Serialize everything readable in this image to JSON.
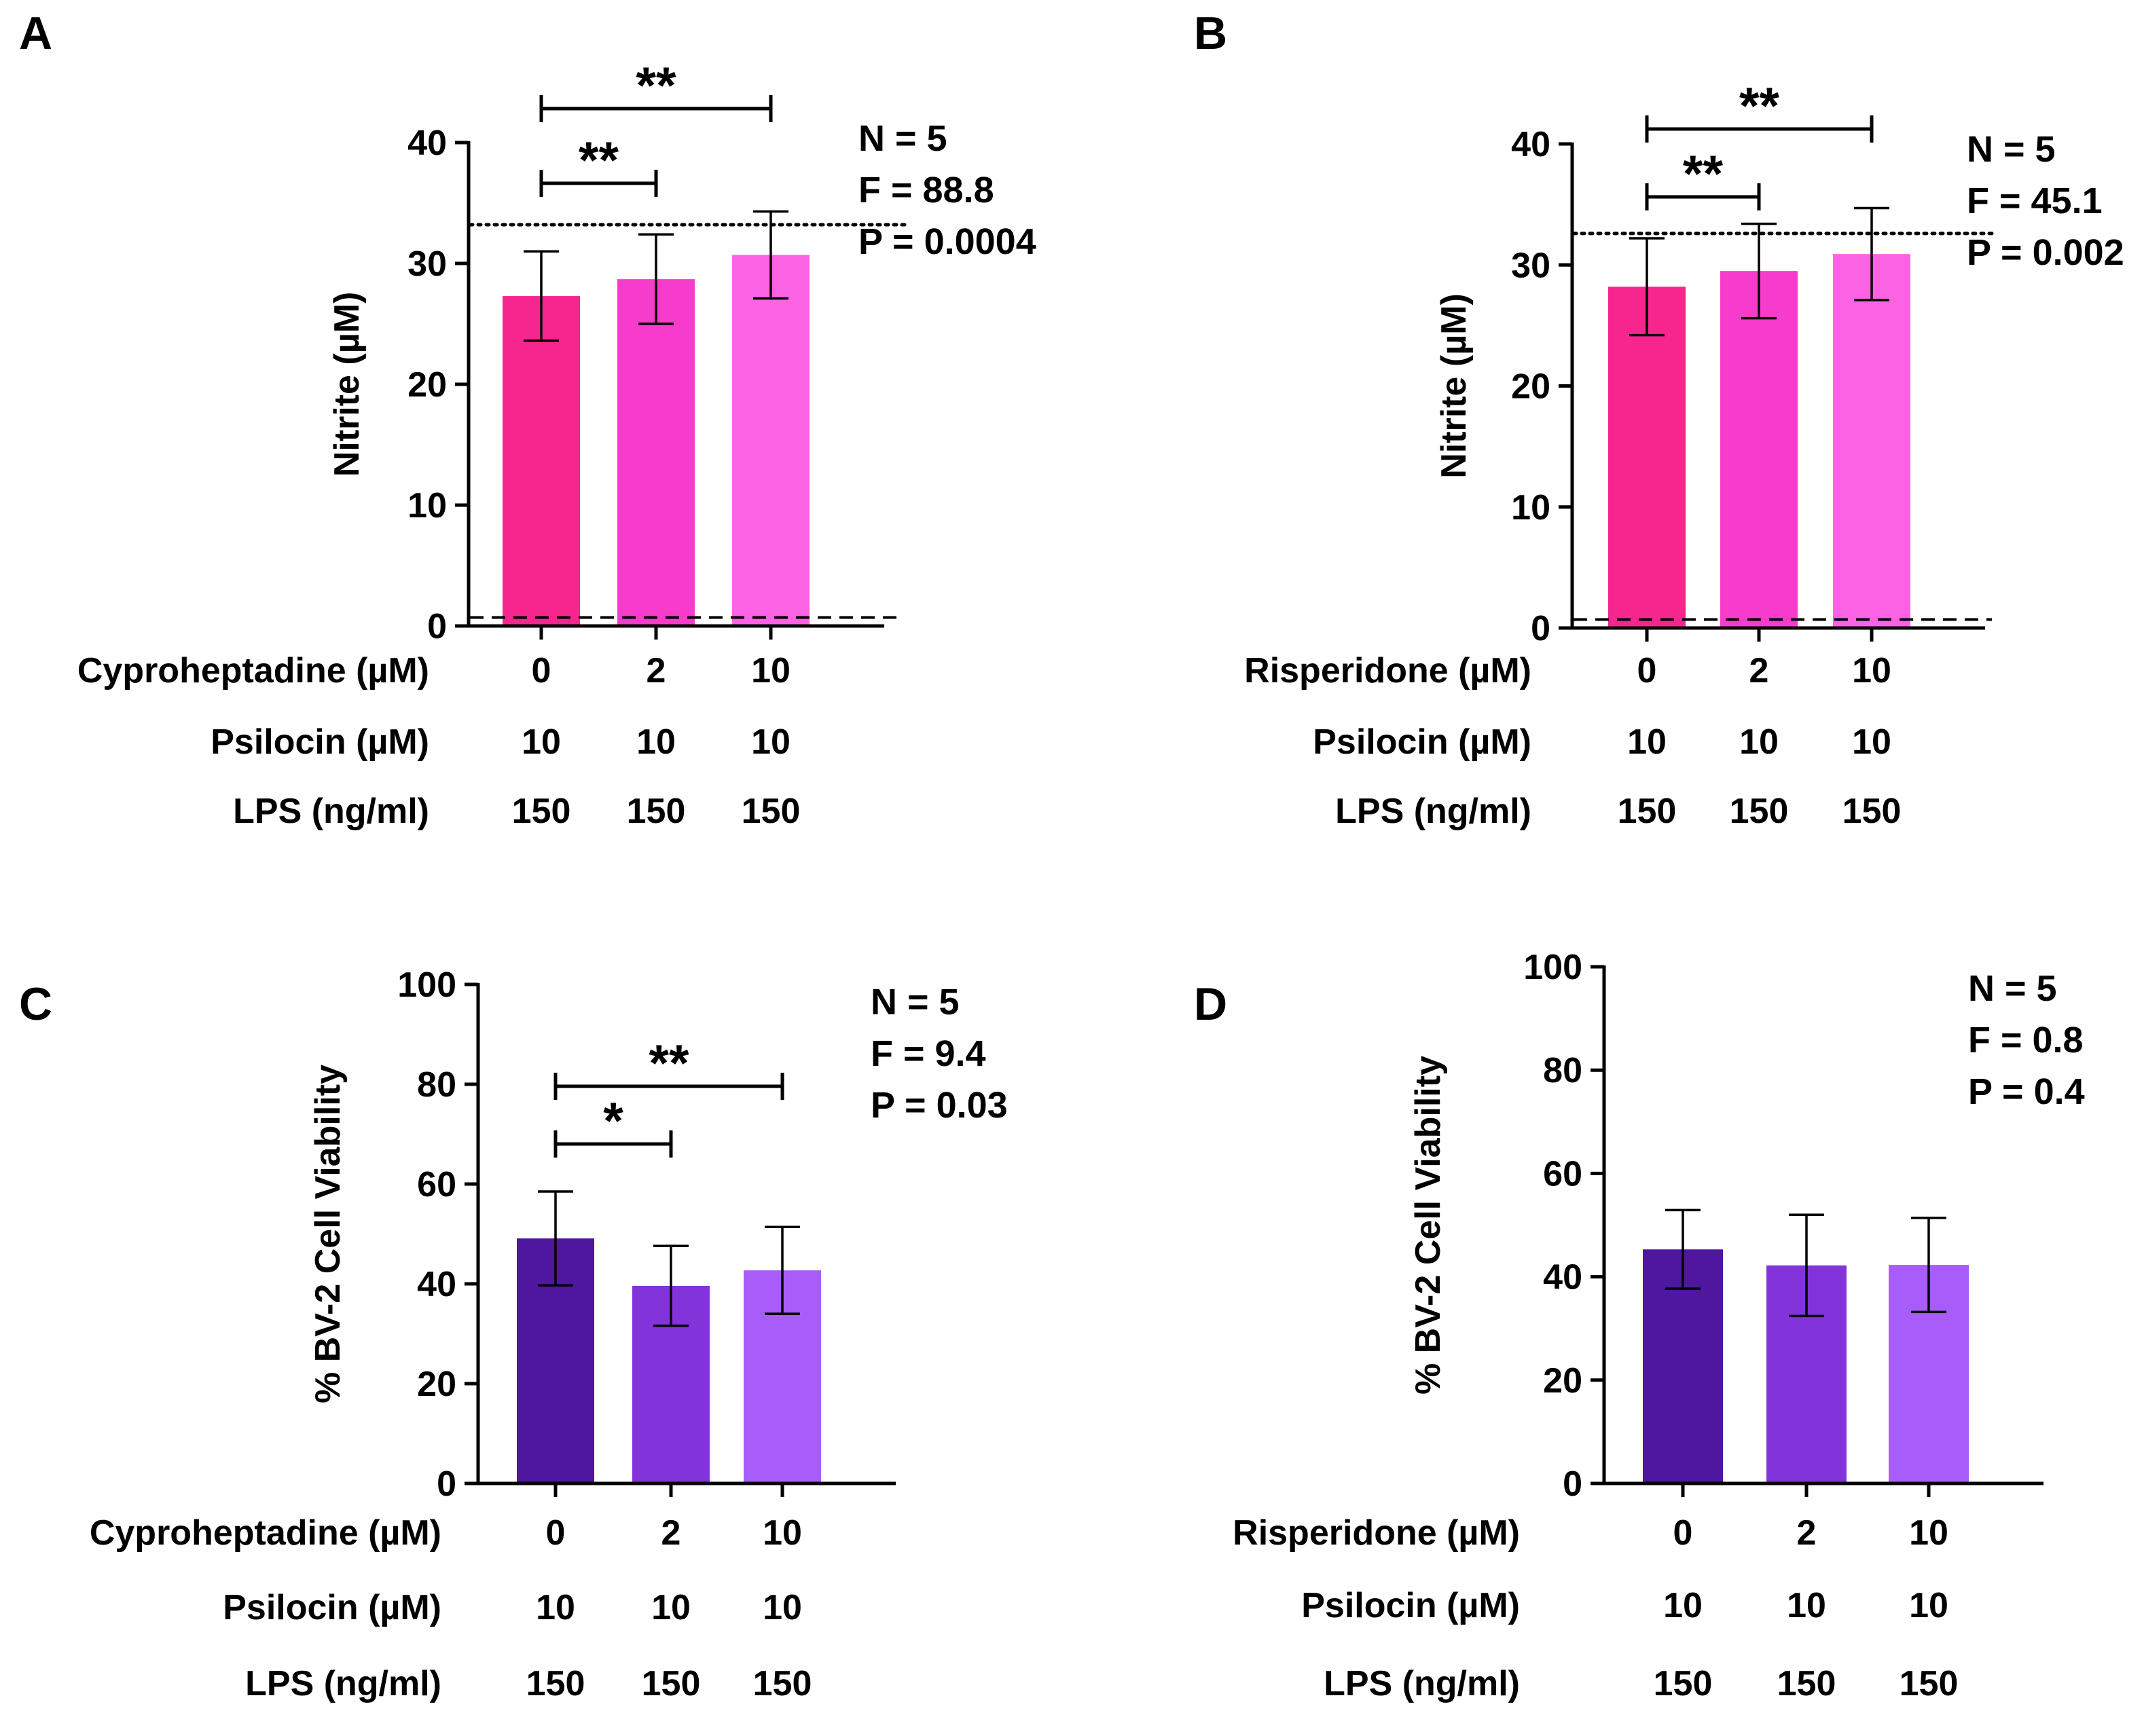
{
  "chart_data": [
    {
      "panel": "A",
      "type": "bar",
      "ylabel": "Nitrite (µM)",
      "ylim": [
        0,
        40
      ],
      "yticks": [
        0,
        10,
        20,
        30,
        40
      ],
      "categories": [
        "0",
        "2",
        "10"
      ],
      "values": [
        27.3,
        28.7,
        30.7
      ],
      "errors": [
        3.7,
        3.7,
        3.6
      ],
      "colors": [
        "#f7268e",
        "#f73bcb",
        "#fb62e4"
      ],
      "reference_lines": [
        {
          "style": "dotted",
          "value": 33.2
        },
        {
          "style": "dashed",
          "value": 0.7
        }
      ],
      "conditions": [
        {
          "label": "Cyproheptadine (µM)",
          "values": [
            "0",
            "2",
            "10"
          ]
        },
        {
          "label": "Psilocin (µM)",
          "values": [
            "10",
            "10",
            "10"
          ]
        },
        {
          "label": "LPS (ng/ml)",
          "values": [
            "150",
            "150",
            "150"
          ]
        }
      ],
      "stats": [
        "N = 5",
        "F = 88.8",
        "P = 0.0004"
      ],
      "significance": [
        {
          "from": 0,
          "to": 1,
          "label": "**"
        },
        {
          "from": 0,
          "to": 2,
          "label": "**"
        }
      ]
    },
    {
      "panel": "B",
      "type": "bar",
      "ylabel": "Nitrite (µM)",
      "ylim": [
        0,
        40
      ],
      "yticks": [
        0,
        10,
        20,
        30,
        40
      ],
      "categories": [
        "0",
        "2",
        "10"
      ],
      "values": [
        28.2,
        29.5,
        30.9
      ],
      "errors": [
        4.0,
        3.9,
        3.8
      ],
      "colors": [
        "#f7268e",
        "#f73bcb",
        "#fb62e4"
      ],
      "reference_lines": [
        {
          "style": "dotted",
          "value": 32.6
        },
        {
          "style": "dashed",
          "value": 0.7
        }
      ],
      "conditions": [
        {
          "label": "Risperidone (µM)",
          "values": [
            "0",
            "2",
            "10"
          ]
        },
        {
          "label": "Psilocin (µM)",
          "values": [
            "10",
            "10",
            "10"
          ]
        },
        {
          "label": "LPS (ng/ml)",
          "values": [
            "150",
            "150",
            "150"
          ]
        }
      ],
      "stats": [
        "N = 5",
        "F = 45.1",
        "P = 0.002"
      ],
      "significance": [
        {
          "from": 0,
          "to": 1,
          "label": "**"
        },
        {
          "from": 0,
          "to": 2,
          "label": "**"
        }
      ]
    },
    {
      "panel": "C",
      "type": "bar",
      "ylabel": "% BV-2 Cell Viability",
      "ylim": [
        0,
        100
      ],
      "yticks": [
        0,
        20,
        40,
        60,
        80,
        100
      ],
      "categories": [
        "0",
        "2",
        "10"
      ],
      "values": [
        49.1,
        39.6,
        42.7
      ],
      "errors": [
        9.4,
        8.0,
        8.7
      ],
      "colors": [
        "#4f169e",
        "#8233d9",
        "#a85cf9"
      ],
      "reference_lines": [],
      "conditions": [
        {
          "label": "Cyproheptadine (µM)",
          "values": [
            "0",
            "2",
            "10"
          ]
        },
        {
          "label": "Psilocin (µM)",
          "values": [
            "10",
            "10",
            "10"
          ]
        },
        {
          "label": "LPS (ng/ml)",
          "values": [
            "150",
            "150",
            "150"
          ]
        }
      ],
      "stats": [
        "N = 5",
        "F = 9.4",
        "P = 0.03"
      ],
      "significance": [
        {
          "from": 0,
          "to": 1,
          "label": "*"
        },
        {
          "from": 0,
          "to": 2,
          "label": "**"
        }
      ]
    },
    {
      "panel": "D",
      "type": "bar",
      "ylabel": "% BV-2 Cell Viability",
      "ylim": [
        0,
        100
      ],
      "yticks": [
        0,
        20,
        40,
        60,
        80,
        100
      ],
      "categories": [
        "0",
        "2",
        "10"
      ],
      "values": [
        45.3,
        42.2,
        42.3
      ],
      "errors": [
        7.6,
        9.8,
        9.1
      ],
      "colors": [
        "#4f169e",
        "#8233d9",
        "#a85cf9"
      ],
      "reference_lines": [],
      "conditions": [
        {
          "label": "Risperidone (µM)",
          "values": [
            "0",
            "2",
            "10"
          ]
        },
        {
          "label": "Psilocin (µM)",
          "values": [
            "10",
            "10",
            "10"
          ]
        },
        {
          "label": "LPS (ng/ml)",
          "values": [
            "150",
            "150",
            "150"
          ]
        }
      ],
      "stats": [
        "N = 5",
        "F = 0.8",
        "P = 0.4"
      ],
      "significance": []
    }
  ]
}
